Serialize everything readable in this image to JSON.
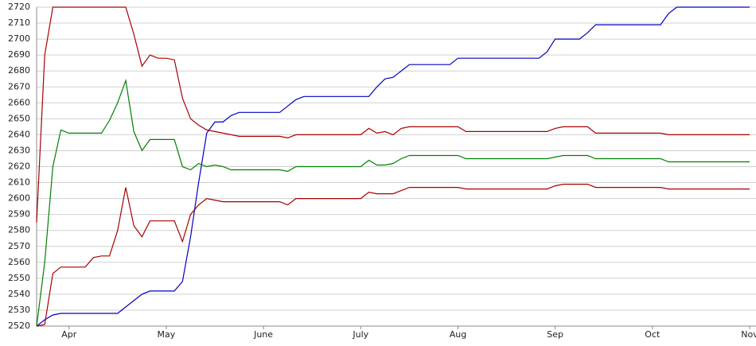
{
  "chart_data": {
    "type": "line",
    "categories": [
      null,
      null,
      null,
      null,
      "Apr",
      null,
      null,
      null,
      null,
      null,
      null,
      null,
      null,
      null,
      null,
      null,
      "May",
      null,
      null,
      null,
      null,
      null,
      null,
      null,
      null,
      null,
      null,
      null,
      "June",
      null,
      null,
      null,
      null,
      null,
      null,
      null,
      null,
      null,
      null,
      null,
      "July",
      null,
      null,
      null,
      null,
      null,
      null,
      null,
      null,
      null,
      null,
      null,
      "Aug",
      null,
      null,
      null,
      null,
      null,
      null,
      null,
      null,
      null,
      null,
      null,
      "Sep",
      null,
      null,
      null,
      null,
      null,
      null,
      null,
      null,
      null,
      null,
      null,
      "Oct",
      null,
      null,
      null,
      null,
      null,
      null,
      null,
      null,
      null,
      null,
      null,
      "Nov"
    ],
    "series": [
      {
        "color": "#0000c0",
        "values": [
          2520,
          2524,
          2527,
          2528,
          2528,
          2528,
          2528,
          2528,
          2528,
          2528,
          2528,
          2532,
          2536,
          2540,
          2542,
          2542,
          2542,
          2542,
          2548,
          2576,
          2610,
          2641,
          2648,
          2648,
          2652,
          2654,
          2654,
          2654,
          2654,
          2654,
          2654,
          2658,
          2662,
          2664,
          2664,
          2664,
          2664,
          2664,
          2664,
          2664,
          2664,
          2664,
          2670,
          2675,
          2676,
          2680,
          2684,
          2684,
          2684,
          2684,
          2684,
          2684,
          2688,
          2688,
          2688,
          2688,
          2688,
          2688,
          2688,
          2688,
          2688,
          2688,
          2688,
          2692,
          2700,
          2700,
          2700,
          2700,
          2704,
          2709,
          2709,
          2709,
          2709,
          2709,
          2709,
          2709,
          2709,
          2709,
          2716,
          2720,
          2720,
          2720,
          2720,
          2720,
          2720,
          2720,
          2720,
          2720,
          2720
        ]
      },
      {
        "color": "#a80000",
        "values": [
          2585,
          2690,
          2720,
          2720,
          2720,
          2720,
          2720,
          2720,
          2720,
          2720,
          2720,
          2720,
          2703,
          2683,
          2690,
          2688,
          2688,
          2687,
          2663,
          2650,
          2646,
          2643,
          2642,
          2641,
          2640,
          2639,
          2639,
          2639,
          2639,
          2639,
          2639,
          2638,
          2640,
          2640,
          2640,
          2640,
          2640,
          2640,
          2640,
          2640,
          2640,
          2644,
          2641,
          2642,
          2640,
          2644,
          2645,
          2645,
          2645,
          2645,
          2645,
          2645,
          2645,
          2642,
          2642,
          2642,
          2642,
          2642,
          2642,
          2642,
          2642,
          2642,
          2642,
          2642,
          2644,
          2645,
          2645,
          2645,
          2645,
          2641,
          2641,
          2641,
          2641,
          2641,
          2641,
          2641,
          2641,
          2641,
          2640,
          2640,
          2640,
          2640,
          2640,
          2640,
          2640,
          2640,
          2640,
          2640,
          2640
        ]
      },
      {
        "color": "#008000",
        "values": [
          2520,
          2560,
          2620,
          2643,
          2641,
          2641,
          2641,
          2641,
          2641,
          2649,
          2660,
          2674,
          2642,
          2630,
          2637,
          2637,
          2637,
          2637,
          2620,
          2618,
          2622,
          2620,
          2621,
          2620,
          2618,
          2618,
          2618,
          2618,
          2618,
          2618,
          2618,
          2617,
          2620,
          2620,
          2620,
          2620,
          2620,
          2620,
          2620,
          2620,
          2620,
          2624,
          2621,
          2621,
          2622,
          2625,
          2627,
          2627,
          2627,
          2627,
          2627,
          2627,
          2627,
          2625,
          2625,
          2625,
          2625,
          2625,
          2625,
          2625,
          2625,
          2625,
          2625,
          2625,
          2626,
          2627,
          2627,
          2627,
          2627,
          2625,
          2625,
          2625,
          2625,
          2625,
          2625,
          2625,
          2625,
          2625,
          2623,
          2623,
          2623,
          2623,
          2623,
          2623,
          2623,
          2623,
          2623,
          2623,
          2623
        ]
      },
      {
        "color": "#a80000",
        "values": [
          2520,
          2521,
          2553,
          2557,
          2557,
          2557,
          2557,
          2563,
          2564,
          2564,
          2580,
          2607,
          2583,
          2576,
          2586,
          2586,
          2586,
          2586,
          2573,
          2590,
          2596,
          2600,
          2599,
          2598,
          2598,
          2598,
          2598,
          2598,
          2598,
          2598,
          2598,
          2596,
          2600,
          2600,
          2600,
          2600,
          2600,
          2600,
          2600,
          2600,
          2600,
          2604,
          2603,
          2603,
          2603,
          2605,
          2607,
          2607,
          2607,
          2607,
          2607,
          2607,
          2607,
          2606,
          2606,
          2606,
          2606,
          2606,
          2606,
          2606,
          2606,
          2606,
          2606,
          2606,
          2608,
          2609,
          2609,
          2609,
          2609,
          2607,
          2607,
          2607,
          2607,
          2607,
          2607,
          2607,
          2607,
          2607,
          2606,
          2606,
          2606,
          2606,
          2606,
          2606,
          2606,
          2606,
          2606,
          2606,
          2606
        ]
      }
    ],
    "ylim": [
      2520,
      2720
    ],
    "yticks": [
      2520,
      2530,
      2540,
      2550,
      2560,
      2570,
      2580,
      2590,
      2600,
      2610,
      2620,
      2630,
      2640,
      2650,
      2660,
      2670,
      2680,
      2690,
      2700,
      2710,
      2720
    ],
    "grid": true
  }
}
